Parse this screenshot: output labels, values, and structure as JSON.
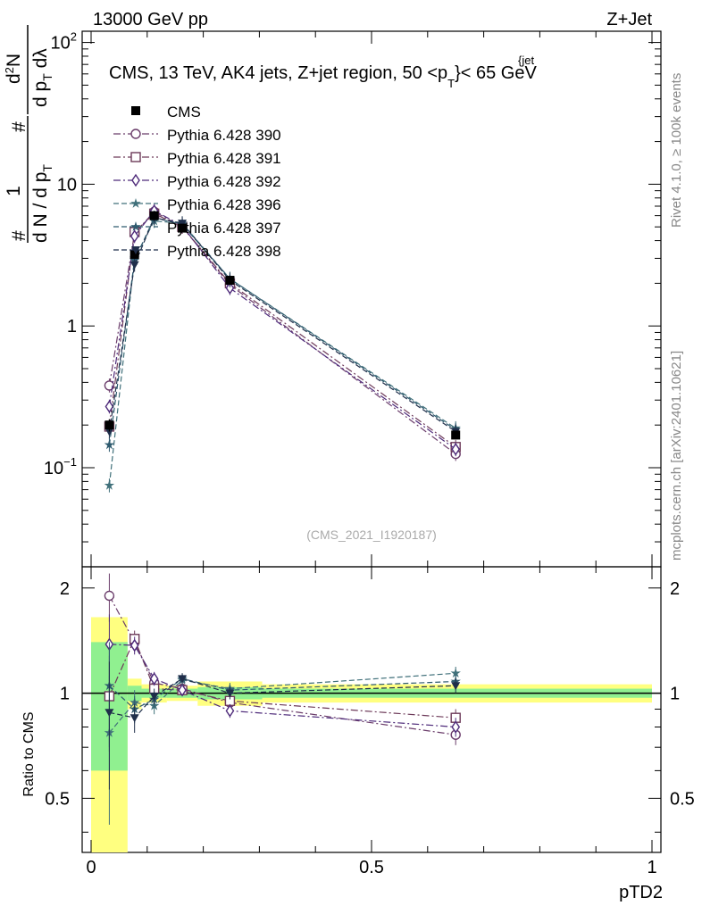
{
  "header": {
    "left": "13000 GeV pp",
    "right": "Z+Jet"
  },
  "side": {
    "rivet": "Rivet 4.1.0, ≥ 100k events",
    "mcplots": "mcplots.cern.ch [arXiv:2401.10621]"
  },
  "chart_data": {
    "type": "line",
    "title": "CMS, 13 TeV, AK4 jets, Z+jet region, 50 <p_T^{jet}< 65 GeV",
    "title_parts": {
      "main": "CMS, 13 TeV, AK4 jets, Z+jet region, 50 <p",
      "sup": "{jet",
      "sub": "T",
      "tail": "}< 65 GeV"
    },
    "watermark": "(CMS_2021_I1920187)",
    "xlabel": "pTD2",
    "ylabel": "1/N dN/dp_T dp_T/dλ",
    "ylabel_parts": {
      "outer_top": "1",
      "outer_bottom_a": "d N / d p",
      "outer_bottom_sub": "T",
      "top_a": "d",
      "top_sup": "2",
      "top_b": "N",
      "bottom_a": "d p",
      "bottom_sub": "T",
      "bottom_b": " dλ",
      "hash": "#"
    },
    "ratio_ylabel": "Ratio to CMS",
    "xlim": [
      0,
      1
    ],
    "ylim": [
      0.02,
      120
    ],
    "yscale": "log",
    "ratio_ylim": [
      0.35,
      2.3
    ],
    "ratio_yscale": "log",
    "x_ticks": [
      "0",
      "0.5",
      "1"
    ],
    "x_tick_values": [
      0,
      0.5,
      1
    ],
    "y_ticks": [
      {
        "value": 100,
        "base": "10",
        "exp": "2"
      },
      {
        "value": 10,
        "base": "10",
        "exp": ""
      },
      {
        "value": 1,
        "base": "1",
        "exp": ""
      },
      {
        "value": 0.1,
        "base": "10",
        "exp": "−1"
      }
    ],
    "ratio_ticks": [
      "2",
      "1",
      "0.5"
    ],
    "ratio_tick_values": [
      2,
      1,
      0.5
    ],
    "x": [
      0.0325,
      0.0775,
      0.1125,
      0.1625,
      0.2475,
      0.65
    ],
    "bin_edges": [
      0,
      0.065,
      0.09,
      0.135,
      0.19,
      0.305,
      1.0
    ],
    "cms": {
      "name": "CMS",
      "values": [
        0.2,
        3.2,
        6.0,
        4.9,
        2.1,
        0.17
      ],
      "errors": [
        0.02,
        0.15,
        0.2,
        0.15,
        0.08,
        0.012
      ],
      "ratio_band_inner": [
        0.4,
        0.05,
        0.03,
        0.03,
        0.04,
        0.03
      ],
      "ratio_band_outer": [
        0.65,
        0.1,
        0.06,
        0.05,
        0.08,
        0.06
      ]
    },
    "series": [
      {
        "name": "Pythia 6.428 390",
        "color": "#6b3d6b",
        "marker": "circle-open",
        "dash": "8,3,2,3",
        "values": [
          0.38,
          4.5,
          6.4,
          5.0,
          1.95,
          0.125
        ],
        "ratio": [
          1.9,
          1.4,
          1.07,
          1.03,
          0.94,
          0.76
        ],
        "ratio_err": [
          0.3,
          0.08,
          0.05,
          0.04,
          0.04,
          0.05
        ]
      },
      {
        "name": "Pythia 6.428 391",
        "color": "#6d3a59",
        "marker": "square-open",
        "dash": "8,3,2,3",
        "values": [
          0.195,
          4.6,
          6.2,
          5.0,
          2.0,
          0.14
        ],
        "ratio": [
          0.98,
          1.43,
          1.03,
          1.02,
          0.95,
          0.85
        ],
        "ratio_err": [
          0.3,
          0.08,
          0.05,
          0.04,
          0.04,
          0.05
        ]
      },
      {
        "name": "Pythia 6.428 392",
        "color": "#4e2a7a",
        "marker": "diamond-open",
        "dash": "8,3,2,3",
        "values": [
          0.27,
          4.3,
          6.5,
          5.1,
          1.85,
          0.135
        ],
        "ratio": [
          1.38,
          1.37,
          1.1,
          1.02,
          0.89,
          0.8
        ],
        "ratio_err": [
          0.3,
          0.08,
          0.05,
          0.04,
          0.04,
          0.05
        ]
      },
      {
        "name": "Pythia 6.428 396",
        "color": "#40707a",
        "marker": "star",
        "dash": "6,3",
        "values": [
          0.075,
          3.0,
          5.5,
          5.3,
          2.15,
          0.19
        ],
        "ratio": [
          0.77,
          0.94,
          0.92,
          1.09,
          1.03,
          1.14
        ],
        "ratio_err": [
          0.35,
          0.08,
          0.05,
          0.04,
          0.04,
          0.05
        ]
      },
      {
        "name": "Pythia 6.428 397",
        "color": "#2e5a6e",
        "marker": "star",
        "dash": "6,3",
        "values": [
          0.145,
          2.9,
          5.8,
          5.2,
          2.15,
          0.185
        ],
        "ratio": [
          1.05,
          0.9,
          0.96,
          1.1,
          1.02,
          1.08
        ],
        "ratio_err": [
          0.35,
          0.08,
          0.05,
          0.04,
          0.04,
          0.05
        ]
      },
      {
        "name": "Pythia 6.428 398",
        "color": "#1f2e4a",
        "marker": "triangle-down",
        "dash": "6,3",
        "values": [
          0.18,
          2.7,
          5.8,
          5.3,
          2.1,
          0.18
        ],
        "ratio": [
          0.88,
          0.85,
          0.98,
          1.1,
          1.0,
          1.05
        ],
        "ratio_err": [
          0.35,
          0.08,
          0.05,
          0.04,
          0.04,
          0.05
        ]
      }
    ],
    "legend_position": "top-left"
  }
}
